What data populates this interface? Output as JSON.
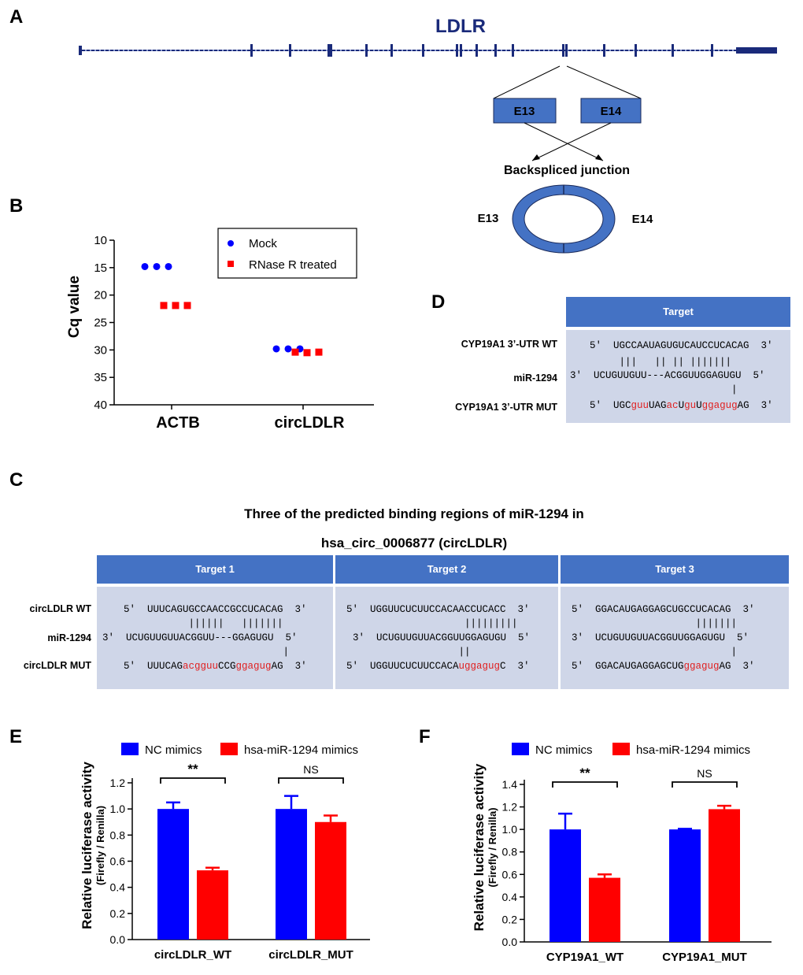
{
  "panels": {
    "a": "A",
    "b": "B",
    "c": "C",
    "d": "D",
    "e": "E",
    "f": "F"
  },
  "panel_a": {
    "gene": "LDLR",
    "exon_left": "E13",
    "exon_right": "E14",
    "junction_label": "Backspliced junction",
    "circle_left": "E13",
    "circle_right": "E14",
    "colors": {
      "gene": "#1a2a7a",
      "exon_box": "#4472c4",
      "ring": "#4472c4"
    }
  },
  "panel_b": {
    "chart_data": {
      "type": "scatter",
      "title": "",
      "ylabel": "Cq value",
      "ylim": [
        10,
        40
      ],
      "y_inverted": true,
      "yticks": [
        "10",
        "15",
        "20",
        "25",
        "30",
        "35",
        "40"
      ],
      "categories": [
        "ACTB",
        "circLDLR"
      ],
      "series": [
        {
          "name": "Mock",
          "color": "#0000ff",
          "marker": "circle",
          "values": [
            [
              14.8,
              14.8,
              14.8
            ],
            [
              29.8,
              29.8,
              29.8
            ]
          ]
        },
        {
          "name": "RNase R treated",
          "color": "#ff0000",
          "marker": "square",
          "values": [
            [
              21.9,
              21.9,
              21.9
            ],
            [
              30.4,
              30.5,
              30.4
            ]
          ]
        }
      ],
      "legend": "top-right"
    }
  },
  "panel_c": {
    "title1": "Three of the predicted binding regions of miR-1294 in",
    "title2": "hsa_circ_0006877  (circLDLR)",
    "row_labels": [
      "circLDLR WT",
      "miR-1294",
      "circLDLR MUT"
    ],
    "targets": [
      {
        "header": "Target 1",
        "wt": "5′  UUUCAGUGCCAACCGCCUCACAG  3′",
        "bars1": "           ||||||   |||||||",
        "mir": "3′  UCUGUUGUUACGGUU---GGAGUGU  5′",
        "bars2": "                           |",
        "mut_a": "5′  UUUCAG",
        "mut_b": "acgguu",
        "mut_c": "CCG",
        "mut_d": "ggagug",
        "mut_e": "AG  3′"
      },
      {
        "header": "Target 2",
        "wt": "5′  UGGUUCUCUUCCACAACCUCACC  3′",
        "bars1": "                    |||||||||",
        "mir": "3′  UCUGUUGUUACGGUUGGAGUGU  5′",
        "bars2": "                   ||",
        "mut_a": "5′  UGGUUCUCUUCCACA",
        "mut_b": "uggagug",
        "mut_c": "C  3′",
        "mut_d": "",
        "mut_e": ""
      },
      {
        "header": "Target 3",
        "wt": "5′  GGACAUGAGGAGCUGCCUCACAG  3′",
        "bars1": "                     |||||||",
        "mir": "3′  UCUGUUGUUACGGUUGGAGUGU  5′",
        "bars2": "                           |",
        "mut_a": "5′  GGACAUGAGGAGCUG",
        "mut_b": "ggagug",
        "mut_c": "AG  3′",
        "mut_d": "",
        "mut_e": ""
      }
    ]
  },
  "panel_d": {
    "header": "Target",
    "row_labels": [
      "CYP19A1 3’-UTR WT",
      "miR-1294",
      "CYP19A1 3’-UTR MUT"
    ],
    "wt": "5′  UGCCAAUAGUGUCAUCCUCACAG  3′",
    "bars1": "     |||   || || |||||||",
    "mir": "3′  UCUGUUGUU---ACGGUUGGAGUGU  5′",
    "bars2": "                        |",
    "mut_parts": [
      "5′  UGC",
      "guu",
      "UAG",
      "ac",
      "U",
      "gu",
      "U",
      "ggagug",
      "AG  3′"
    ]
  },
  "panel_e": {
    "chart_data": {
      "type": "bar",
      "ylabel": "Relative luciferase activity",
      "ylabel2": "(Firefly / Renilla)",
      "ylim": [
        0,
        1.2
      ],
      "yticks": [
        "0.0",
        "0.2",
        "0.4",
        "0.6",
        "0.8",
        "1.0",
        "1.2"
      ],
      "categories": [
        "circLDLR_WT",
        "circLDLR_MUT"
      ],
      "series": [
        {
          "name": "NC mimics",
          "color": "#0000ff",
          "values": [
            1.0,
            1.0
          ],
          "errors": [
            0.05,
            0.1
          ]
        },
        {
          "name": "hsa-miR-1294 mimics",
          "color": "#ff0000",
          "values": [
            0.53,
            0.9
          ],
          "errors": [
            0.02,
            0.05
          ]
        }
      ],
      "significance": [
        "**",
        "NS"
      ],
      "legend": "top"
    }
  },
  "panel_f": {
    "chart_data": {
      "type": "bar",
      "ylabel": "Relative luciferase activity",
      "ylabel2": "(Firefly / Renilla)",
      "ylim": [
        0,
        1.4
      ],
      "yticks": [
        "0.0",
        "0.2",
        "0.4",
        "0.6",
        "0.8",
        "1.0",
        "1.2",
        "1.4"
      ],
      "categories": [
        "CYP19A1_WT",
        "CYP19A1_MUT"
      ],
      "series": [
        {
          "name": "NC mimics",
          "color": "#0000ff",
          "values": [
            1.0,
            1.0
          ],
          "errors": [
            0.14,
            0.005
          ]
        },
        {
          "name": "hsa-miR-1294 mimics",
          "color": "#ff0000",
          "values": [
            0.57,
            1.18
          ],
          "errors": [
            0.03,
            0.03
          ]
        }
      ],
      "significance": [
        "**",
        "NS"
      ],
      "legend": "top"
    }
  }
}
